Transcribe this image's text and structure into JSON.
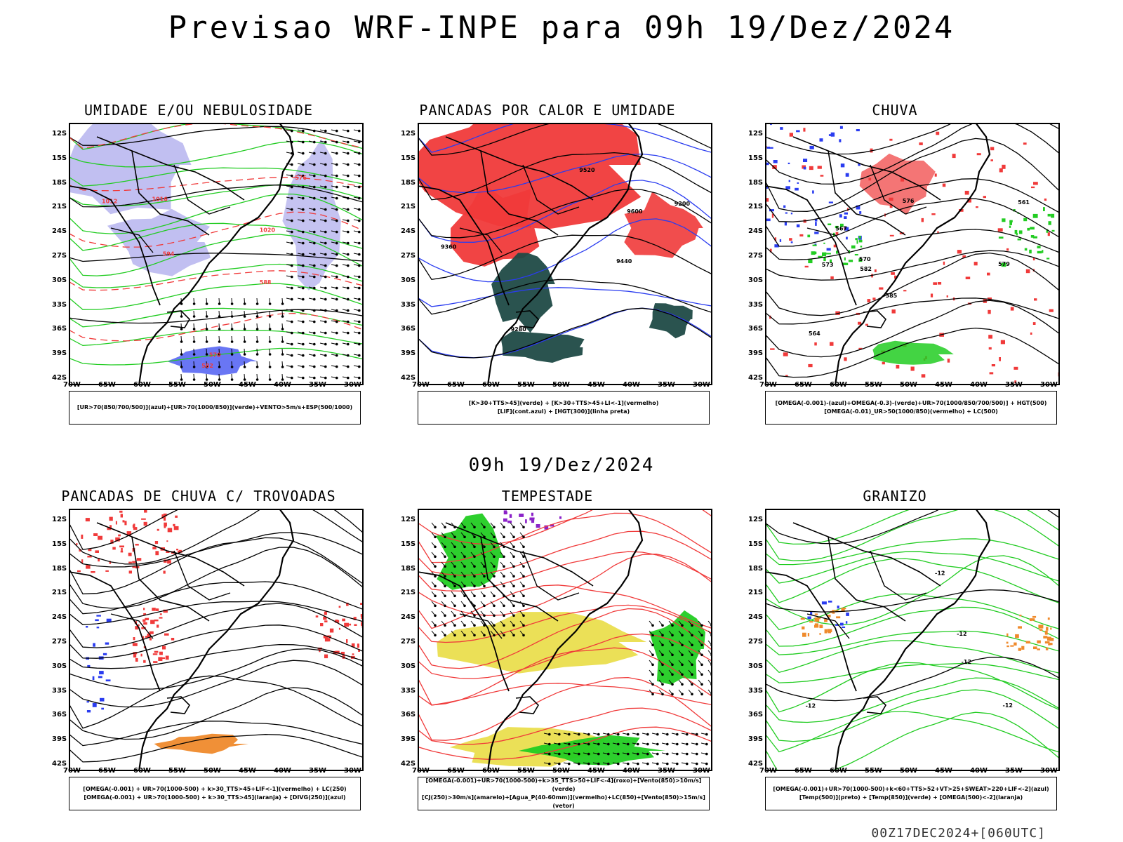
{
  "header": {
    "title": "Previsao WRF-INPE  para 09h 19/Dez/2024"
  },
  "mid_title": "09h 19/Dez/2024",
  "footer": "00Z17DEC2024+[060UTC]",
  "axes": {
    "lat_labels": [
      "12S",
      "15S",
      "18S",
      "21S",
      "24S",
      "27S",
      "30S",
      "33S",
      "36S",
      "39S",
      "42S"
    ],
    "lon_labels": [
      "70W",
      "65W",
      "60W",
      "55W",
      "50W",
      "45W",
      "40W",
      "35W",
      "30W"
    ]
  },
  "colors": {
    "blue": "#2a3cf0",
    "green": "#22cc22",
    "red": "#f03a3a",
    "dark_teal": "#1f4a46",
    "lavender": "#b6b4ee",
    "yellow": "#e8da3a",
    "orange": "#ef8a2c",
    "purple": "#8b22c8"
  },
  "panels": [
    {
      "title": "UMIDADE E/OU NEBULOSIDADE",
      "contour_labels": [
        "1012",
        "1016",
        "1020",
        "570",
        "576",
        "582",
        "588",
        "594"
      ],
      "caption": [
        "[UR>70(850/700/500)](azul)+[UR>70(1000/850)](verde)+VENTO>5m/s+ESP(500/1000)"
      ]
    },
    {
      "title": "PANCADAS POR CALOR E UMIDADE",
      "contour_labels": [
        "9600",
        "9520",
        "9440",
        "9360",
        "9280",
        "9200"
      ],
      "caption": [
        "[K>30+TTS>45](verde) + [K>30+TTS>45+LI<-1](vermelho)",
        "[LIF](cont.azul) + [HGT(300)](linha preta)"
      ]
    },
    {
      "title": "CHUVA",
      "contour_labels": [
        "585",
        "582",
        "579",
        "576",
        "573",
        "570",
        "567",
        "564",
        "561"
      ],
      "caption": [
        "[OMEGA(-0.001)-(azul)+OMEGA(-0.3)-(verde)+UR>70(1000/850/700/500)] + HGT(500)",
        "[OMEGA(-0.01)_UR>50(1000/850)(vermelho) + LC(500)"
      ]
    },
    {
      "title": "PANCADAS DE CHUVA C/ TROVOADAS",
      "contour_labels": [],
      "caption": [
        "[OMEGA(-0.001) + UR>70(1000-500) + k>30_TTS>45+LIF<-1](vermelho) + LC(250)",
        "[OMEGA(-0.001) + UR>70(1000-500) + k>30_TTS>45](laranja) + [DIVG(250)](azul)"
      ]
    },
    {
      "title": "TEMPESTADE",
      "contour_labels": [],
      "caption": [
        "[OMEGA(-0.001)+UR>70(1000-500)+k>35_TTS>50+LIF<-4](roxo)+[Vento(850)>10m/s](verde)",
        "[CJ(250)>30m/s](amarelo)+[Agua_P(40-60mm)](vermelho)+LC(850)+[Vento(850)>15m/s](vetor)"
      ]
    },
    {
      "title": "GRANIZO",
      "contour_labels": [
        "-12",
        "-12",
        "-12",
        "-12",
        "-12"
      ],
      "caption": [
        "[OMEGA(-0.001)+UR>70(1000-500)+k<60+TTS>52+VT>25+SWEAT>220+LIF<-2](azul)",
        "[Temp(500)](preto) + [Temp(850)](verde) + [OMEGA(500)<-2](laranja)"
      ]
    }
  ]
}
